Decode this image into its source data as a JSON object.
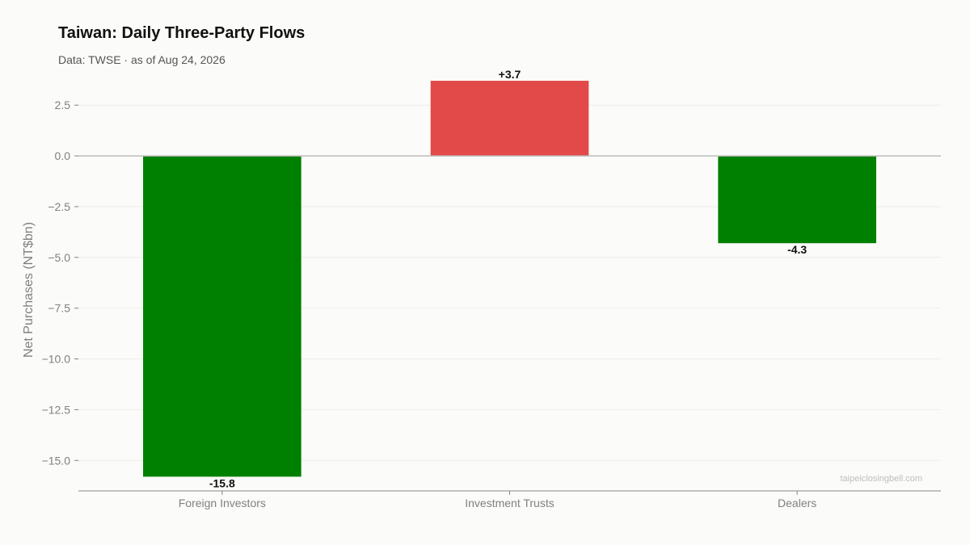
{
  "header": {
    "title": "Taiwan: Daily Three-Party Flows",
    "subtitle": "Data: TWSE · as of Aug 24, 2026"
  },
  "watermark": "taipeiclosingbell.com",
  "colors": {
    "positive": "#e24a4a",
    "negative": "#008000",
    "background": "#fbfbf9",
    "grid": "#ecece8",
    "zero_line": "#bdbdbd",
    "axis_line": "#888888",
    "tick_text": "#808080",
    "title_text": "#111111",
    "subtitle_text": "#555555",
    "watermark_text": "#bdbdbd",
    "label_text": "#111111"
  },
  "chart_data": {
    "type": "bar",
    "categories": [
      "Foreign Investors",
      "Investment Trusts",
      "Dealers"
    ],
    "values": [
      -15.8,
      3.7,
      -4.3
    ],
    "value_labels": [
      "-15.8",
      "+3.7",
      "-4.3"
    ],
    "title": "Taiwan: Daily Three-Party Flows",
    "xlabel": "",
    "ylabel": "Net Purchases (NT$bn)",
    "ylim": [
      -16.5,
      3.9
    ],
    "yticks": [
      2.5,
      0.0,
      -2.5,
      -5.0,
      -7.5,
      -10.0,
      -12.5,
      -15.0
    ],
    "ytick_labels": [
      "2.5",
      "0.0",
      "−2.5",
      "−5.0",
      "−7.5",
      "−10.0",
      "−12.5",
      "−15.0"
    ],
    "grid": true,
    "legend": "none"
  }
}
